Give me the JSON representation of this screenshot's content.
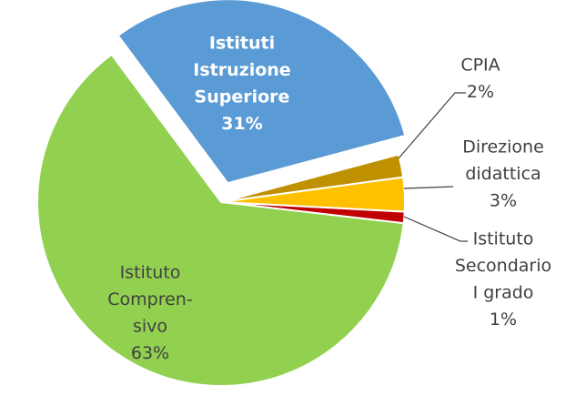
{
  "chart_data": {
    "type": "pie",
    "categories": [
      [
        "Istituti",
        "Istruzione",
        "Superiore"
      ],
      [
        "CPIA"
      ],
      [
        "Direzione",
        "didattica"
      ],
      [
        "Istituto",
        "Secondario",
        "I grado"
      ],
      [
        "Istituto",
        "Compren-",
        "sivo"
      ]
    ],
    "values": [
      31,
      2,
      3,
      1,
      63
    ],
    "value_labels": [
      "31%",
      "2%",
      "3%",
      "1%",
      "63%"
    ],
    "colors": [
      "#5b9bd5",
      "#bf9000",
      "#ffc000",
      "#c00000",
      "#92d050"
    ]
  }
}
